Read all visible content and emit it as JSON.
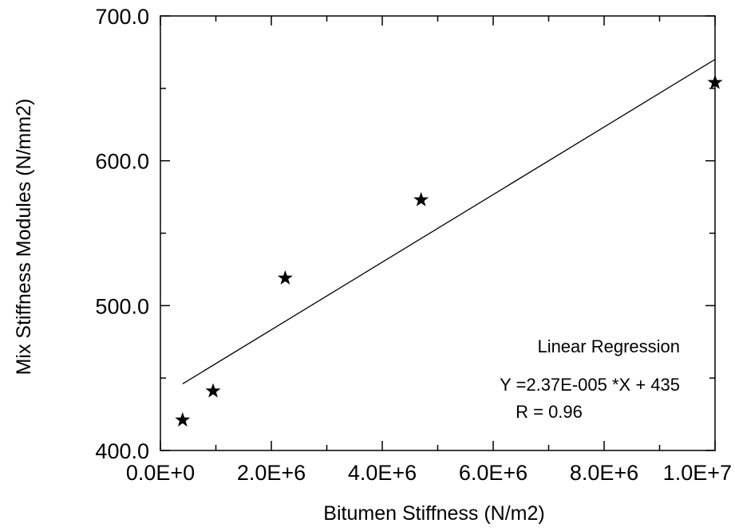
{
  "chart_data": {
    "type": "scatter",
    "title": "",
    "xlabel": "Bitumen Stiffness (N/m2)",
    "ylabel": "Mix Stiffness Modules (N/mm2)",
    "xlim": [
      0,
      10000000
    ],
    "ylim": [
      400,
      700
    ],
    "x_ticks": [
      0,
      2000000,
      4000000,
      6000000,
      8000000,
      10000000
    ],
    "x_tick_labels": [
      "0.0E+0",
      "2.0E+6",
      "4.0E+6",
      "6.0E+6",
      "8.0E+6",
      "1.0E+7"
    ],
    "y_ticks": [
      400,
      500,
      600,
      700
    ],
    "y_tick_labels": [
      "400.0",
      "500.0",
      "600.0",
      "700.0"
    ],
    "grid": false,
    "marker": "star",
    "points": [
      {
        "x": 400000,
        "y": 421
      },
      {
        "x": 950000,
        "y": 441
      },
      {
        "x": 2250000,
        "y": 519
      },
      {
        "x": 4700000,
        "y": 573
      },
      {
        "x": 10000000,
        "y": 654
      }
    ],
    "fit_line": {
      "x": [
        400000,
        10000000
      ],
      "y": [
        446,
        670
      ]
    },
    "annotation": {
      "heading": "Linear Regression",
      "equation": "Y =2.37E-005 *X + 435",
      "r_value": "R = 0.96"
    }
  }
}
